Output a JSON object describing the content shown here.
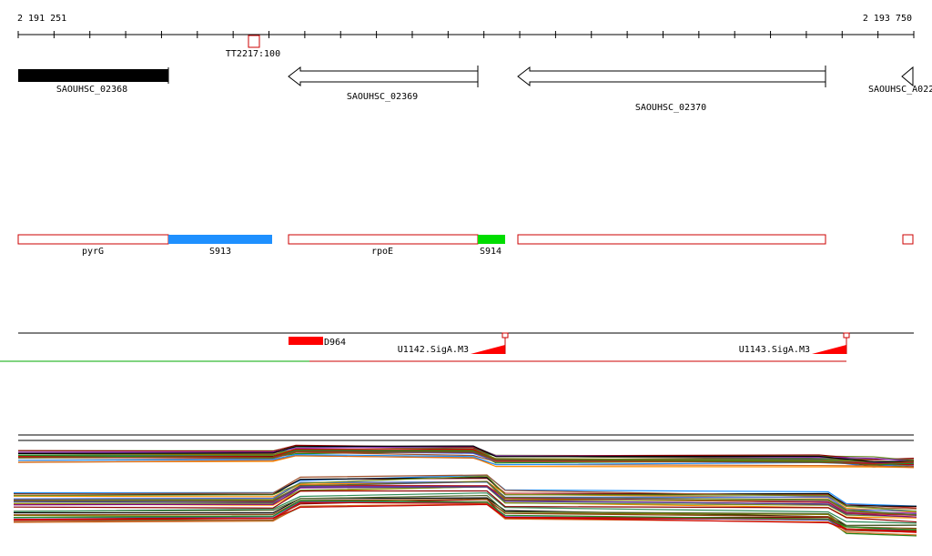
{
  "coordinates": {
    "start": "2 191 251",
    "end": "2 193 750"
  },
  "probe": {
    "label": "TT2217:100"
  },
  "genes": [
    {
      "name": "SAOUHSC_02368",
      "strand": "+",
      "fill": "#000000"
    },
    {
      "name": "SAOUHSC_02369",
      "strand": "-",
      "fill": "#ffffff"
    },
    {
      "name": "SAOUHSC_02370",
      "strand": "-",
      "fill": "#ffffff"
    },
    {
      "name": "SAOUHSC_A022",
      "strand": "-",
      "fill": "#ffffff"
    }
  ],
  "segments": [
    {
      "name": "pyrG",
      "color": "#ffffff",
      "border": "#cc0000"
    },
    {
      "name": "S913",
      "color": "#1e90ff",
      "border": "#1e90ff"
    },
    {
      "name": "rpoE",
      "color": "#ffffff",
      "border": "#cc0000"
    },
    {
      "name": "S914",
      "color": "#00dd00",
      "border": "#00dd00"
    },
    {
      "name": "",
      "color": "#ffffff",
      "border": "#cc0000"
    },
    {
      "name": "",
      "color": "#ffffff",
      "border": "#cc0000"
    }
  ],
  "features": {
    "red_block": "D964",
    "promoters": [
      "U1142.SigA.M3",
      "U1143.SigA.M3"
    ]
  },
  "colors": {
    "axis": "#000000",
    "segment_border": "#cc0000",
    "red_block": "#ff0000",
    "promoter": "#ff0000",
    "green_track": "#00aa00",
    "red_track": "#cc0000"
  }
}
